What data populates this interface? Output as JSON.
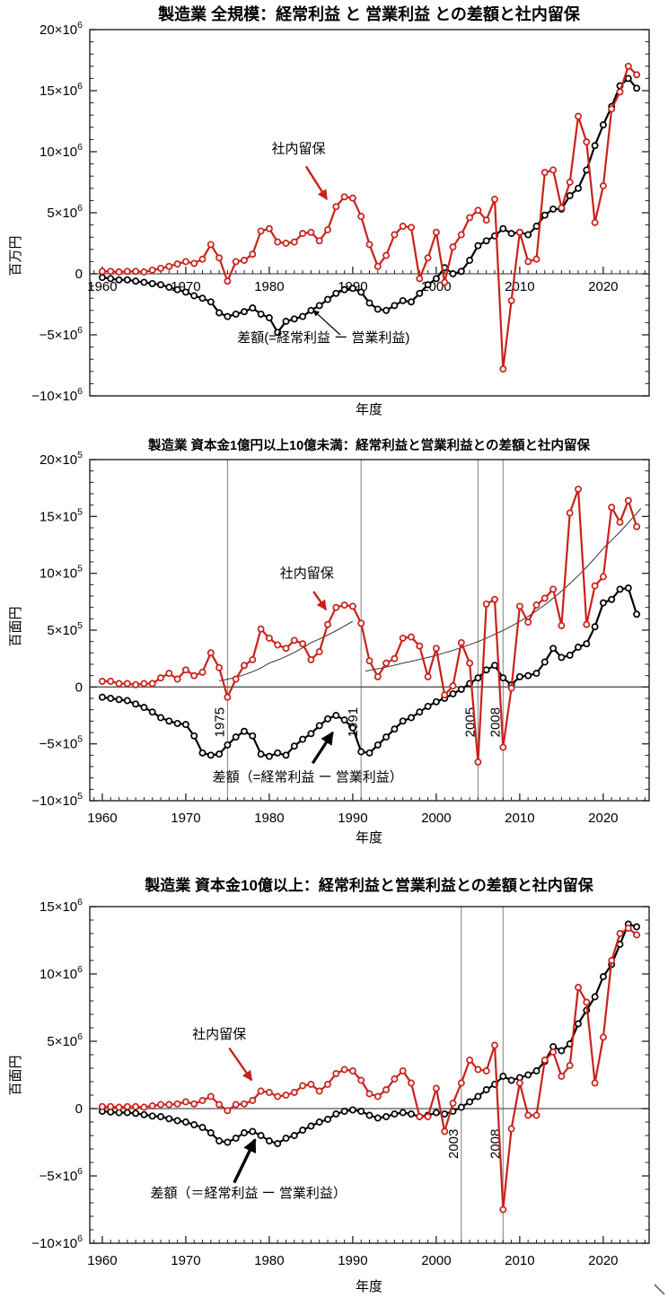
{
  "chart_data": [
    {
      "type": "line",
      "title": "製造業 全規模：経常利益 と 営業利益 との差額と社内留保",
      "xlabel": "年度",
      "ylabel": "百万円",
      "unit_exponent": 6,
      "ylim": [
        -10,
        20
      ],
      "y_major_step": 5,
      "y_minor_step": 1,
      "xlim": [
        1958.5,
        2025.5
      ],
      "x_major_step": 10,
      "x_minor_step": 1,
      "x_ticks_on_zero_axis": true,
      "grid": false,
      "legend_position": "none",
      "year_start": 1960,
      "year_end": 2024,
      "series": [
        {
          "name": "社内留保",
          "color": "#c9211b",
          "values": [
            0.2,
            0.2,
            0.15,
            0.2,
            0.2,
            0.15,
            0.3,
            0.45,
            0.6,
            0.8,
            1.0,
            0.85,
            1.2,
            2.4,
            1.3,
            -0.6,
            1.0,
            1.1,
            1.6,
            3.5,
            3.7,
            2.6,
            2.5,
            2.6,
            3.3,
            3.4,
            2.7,
            3.6,
            5.5,
            6.3,
            6.2,
            4.7,
            2.4,
            0.6,
            1.5,
            3.2,
            3.9,
            3.8,
            -0.4,
            1.3,
            3.4,
            -0.7,
            2.2,
            3.2,
            4.6,
            5.2,
            4.4,
            6.1,
            -7.8,
            -2.2,
            3.4,
            1.0,
            1.2,
            8.3,
            8.5,
            5.4,
            7.5,
            12.9,
            10.8,
            4.2,
            7.2,
            13.5,
            14.9,
            17.0,
            16.3
          ]
        },
        {
          "name": "差額(=経常利益 ー 営業利益)",
          "color": "#000000",
          "values": [
            -0.3,
            -0.4,
            -0.5,
            -0.5,
            -0.6,
            -0.7,
            -0.8,
            -0.9,
            -1.1,
            -1.3,
            -1.5,
            -1.8,
            -2.0,
            -2.3,
            -3.2,
            -3.5,
            -3.3,
            -3.1,
            -2.8,
            -3.3,
            -3.6,
            -4.8,
            -3.9,
            -3.7,
            -3.5,
            -3.0,
            -2.6,
            -2.1,
            -1.6,
            -1.3,
            -1.2,
            -1.5,
            -2.4,
            -2.9,
            -3.0,
            -2.6,
            -2.2,
            -2.3,
            -1.6,
            -0.9,
            -0.4,
            0.5,
            0.0,
            0.2,
            1.1,
            2.3,
            2.7,
            3.1,
            3.7,
            3.3,
            3.4,
            3.2,
            3.9,
            4.8,
            5.3,
            5.3,
            6.4,
            7.0,
            8.5,
            10.5,
            12.2,
            13.7,
            15.4,
            16.0,
            15.2
          ]
        }
      ],
      "vlines": [],
      "trend_curves": [],
      "annotations": [
        {
          "text": "社内留保",
          "text_color": "#000000",
          "arrow_color": "#c9211b",
          "tx": 1983.5,
          "ty": 9.9,
          "arrow": [
            1984.4,
            8.8,
            1986.9,
            6.1
          ],
          "width": 2.4,
          "font": 15
        },
        {
          "text": "差額(=経常利益 ー 営業利益)",
          "text_color": "#000000",
          "arrow_color": "#000000",
          "tx": 1986.5,
          "ty": -5.6,
          "arrow": [
            1988.5,
            -5.0,
            1985.3,
            -3.0
          ],
          "width": 1.2,
          "font": 15
        }
      ]
    },
    {
      "type": "line",
      "title": "製造業 資本金1億円以上10億未満：経常利益と営業利益との差額と社内留保",
      "xlabel": "年度",
      "ylabel": "百面円",
      "unit_exponent": 5,
      "ylim": [
        -10,
        20
      ],
      "y_major_step": 5,
      "y_minor_step": 1,
      "xlim": [
        1958.5,
        2025.5
      ],
      "x_major_step": 10,
      "x_minor_step": 1,
      "x_ticks_on_zero_axis": false,
      "grid": false,
      "legend_position": "none",
      "year_start": 1960,
      "year_end": 2024,
      "series": [
        {
          "name": "社内留保",
          "color": "#c9211b",
          "values": [
            0.5,
            0.5,
            0.3,
            0.3,
            0.2,
            0.3,
            0.3,
            0.8,
            1.2,
            0.7,
            1.5,
            1.0,
            1.3,
            3.0,
            1.7,
            -0.9,
            0.7,
            1.9,
            2.4,
            5.1,
            4.3,
            3.7,
            3.4,
            4.1,
            3.8,
            2.4,
            3.1,
            5.5,
            7.0,
            7.2,
            7.1,
            5.6,
            2.3,
            0.9,
            2.1,
            2.5,
            4.3,
            4.4,
            3.6,
            0.9,
            3.4,
            -0.7,
            0.1,
            3.9,
            2.1,
            -6.6,
            7.3,
            7.7,
            -5.3,
            -0.1,
            7.1,
            5.7,
            7.2,
            7.8,
            8.6,
            5.4,
            15.3,
            17.4,
            5.5,
            8.9,
            9.7,
            15.8,
            14.5,
            16.4,
            14.1
          ]
        },
        {
          "name": "差額（=経常利益 ー 営業利益）",
          "color": "#000000",
          "values": [
            -0.9,
            -1.0,
            -1.1,
            -1.2,
            -1.5,
            -1.8,
            -2.2,
            -2.7,
            -3.0,
            -3.2,
            -3.3,
            -4.3,
            -5.8,
            -6.0,
            -5.9,
            -5.1,
            -4.4,
            -3.9,
            -4.3,
            -5.9,
            -6.1,
            -5.8,
            -6.0,
            -5.2,
            -4.6,
            -4.1,
            -3.4,
            -2.8,
            -2.5,
            -2.9,
            -3.6,
            -5.7,
            -5.8,
            -5.1,
            -4.4,
            -3.7,
            -3.0,
            -2.7,
            -2.2,
            -1.7,
            -1.3,
            -1.0,
            -0.6,
            -0.2,
            0.3,
            0.8,
            1.5,
            1.9,
            0.8,
            0.2,
            0.9,
            1.0,
            1.2,
            2.2,
            3.4,
            2.6,
            2.8,
            3.5,
            3.8,
            5.3,
            7.4,
            7.7,
            8.6,
            8.7,
            6.4
          ]
        }
      ],
      "vlines": [
        {
          "year": 1975,
          "label": "1975"
        },
        {
          "year": 1991,
          "label": "1991"
        },
        {
          "year": 2005,
          "label": "2005"
        },
        {
          "year": 2008,
          "label": "2008"
        }
      ],
      "trend_curves": [
        {
          "points": [
            [
              1974,
              0.55
            ],
            [
              1980,
              2.1
            ],
            [
              1985,
              3.9
            ],
            [
              1990,
              5.8
            ]
          ]
        },
        {
          "points": [
            [
              1991.5,
              1.4
            ],
            [
              1996,
              2.1
            ],
            [
              2001,
              3.0
            ],
            [
              2006,
              4.3
            ],
            [
              2011,
              6.2
            ],
            [
              2016,
              9.1
            ],
            [
              2020,
              12.2
            ],
            [
              2024.5,
              15.7
            ]
          ]
        }
      ],
      "annotations": [
        {
          "text": "社内留保",
          "text_color": "#000000",
          "arrow_color": "#c9211b",
          "tx": 1984.5,
          "ty": 9.6,
          "arrow": [
            1985.3,
            8.4,
            1986.8,
            6.8
          ],
          "width": 2.4,
          "font": 15
        },
        {
          "text": "差額（=経常利益 ー 営業利益）",
          "text_color": "#000000",
          "arrow_color": "#000000",
          "tx": 1984.6,
          "ty": -8.3,
          "arrow": [
            1985.2,
            -6.7,
            1987.6,
            -4.0
          ],
          "width": 3.2,
          "font": 15
        }
      ]
    },
    {
      "type": "line",
      "title": "製造業 資本金10億以上：経常利益と営業利益との差額と社内留保",
      "xlabel": "年度",
      "ylabel": "百面円",
      "unit_exponent": 6,
      "ylim": [
        -10,
        15
      ],
      "y_major_step": 5,
      "y_minor_step": 1,
      "xlim": [
        1958.5,
        2025.5
      ],
      "x_major_step": 10,
      "x_minor_step": 1,
      "x_ticks_on_zero_axis": false,
      "grid": false,
      "legend_position": "none",
      "year_start": 1960,
      "year_end": 2024,
      "series": [
        {
          "name": "社内留保",
          "color": "#c9211b",
          "values": [
            0.15,
            0.15,
            0.1,
            0.15,
            0.15,
            0.1,
            0.2,
            0.3,
            0.3,
            0.35,
            0.5,
            0.35,
            0.6,
            0.9,
            0.3,
            -0.15,
            0.3,
            0.35,
            0.6,
            1.3,
            1.2,
            0.9,
            1.0,
            1.2,
            1.7,
            1.8,
            1.3,
            1.8,
            2.6,
            2.9,
            2.8,
            2.1,
            1.1,
            0.9,
            1.4,
            2.2,
            2.8,
            1.9,
            -0.6,
            -0.6,
            1.5,
            -1.7,
            0.4,
            1.9,
            3.6,
            2.9,
            2.8,
            4.7,
            -7.5,
            -1.5,
            1.9,
            -0.5,
            -0.5,
            3.6,
            4.2,
            2.4,
            3.2,
            9.0,
            7.9,
            1.9,
            5.3,
            11.0,
            13.0,
            13.4,
            12.9
          ]
        },
        {
          "name": "差額（＝経常利益 ー 営業利益）",
          "color": "#000000",
          "values": [
            -0.2,
            -0.25,
            -0.3,
            -0.3,
            -0.35,
            -0.45,
            -0.55,
            -0.6,
            -0.75,
            -0.9,
            -1.0,
            -1.2,
            -1.4,
            -1.8,
            -2.4,
            -2.5,
            -2.2,
            -1.8,
            -1.7,
            -2.0,
            -2.4,
            -2.6,
            -2.2,
            -2.0,
            -1.6,
            -1.3,
            -1.0,
            -0.8,
            -0.4,
            -0.2,
            -0.1,
            -0.2,
            -0.5,
            -0.7,
            -0.6,
            -0.4,
            -0.3,
            -0.4,
            -0.6,
            -0.5,
            -0.3,
            -0.4,
            -0.2,
            0.1,
            0.5,
            0.9,
            1.4,
            1.8,
            2.4,
            2.1,
            2.3,
            2.5,
            2.8,
            3.5,
            4.6,
            4.3,
            4.8,
            6.3,
            7.3,
            8.3,
            9.8,
            10.7,
            12.2,
            13.7,
            13.5
          ]
        }
      ],
      "vlines": [
        {
          "year": 2003,
          "label": "2003"
        },
        {
          "year": 2008,
          "label": "2008"
        }
      ],
      "trend_curves": [],
      "annotations": [
        {
          "text": "社内留保",
          "text_color": "#000000",
          "arrow_color": "#c9211b",
          "tx": 1974.0,
          "ty": 5.2,
          "arrow": [
            1975.2,
            4.5,
            1977.9,
            2.1
          ],
          "width": 2.4,
          "font": 15
        },
        {
          "text": "差額（＝経常利益 ー 営業利益）",
          "text_color": "#000000",
          "arrow_color": "#000000",
          "tx": 1977.5,
          "ty": -6.6,
          "arrow": [
            1975.8,
            -5.5,
            1978.3,
            -2.3
          ],
          "width": 3.4,
          "font": 15
        }
      ]
    }
  ]
}
